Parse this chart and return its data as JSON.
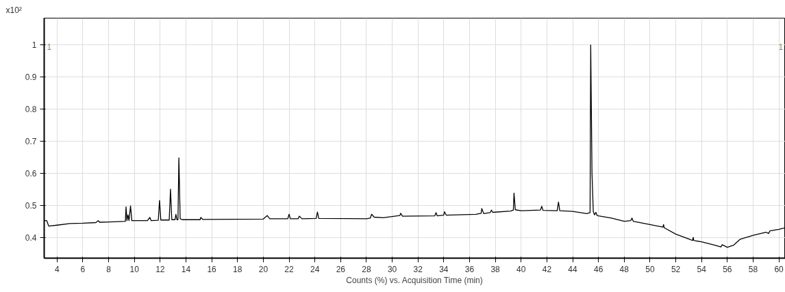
{
  "chart_data": {
    "type": "line",
    "xlabel": "Counts (%) vs. Acquisition Time (min)",
    "ylabel": "x10²",
    "annotations": [
      "1",
      "1"
    ],
    "xlim": [
      3.0,
      60.5
    ],
    "ylim": [
      0.335,
      1.084
    ],
    "xticks": [
      4,
      6,
      8,
      10,
      12,
      14,
      16,
      18,
      20,
      22,
      24,
      26,
      28,
      30,
      32,
      34,
      36,
      38,
      40,
      42,
      44,
      46,
      48,
      50,
      52,
      54,
      56,
      58,
      60
    ],
    "yticks": [
      0.4,
      0.5,
      0.6,
      0.7,
      0.8,
      0.9,
      1
    ],
    "grid": true,
    "marker": "none",
    "line_style": "solid",
    "x": [
      3.0,
      3.2,
      3.35,
      4,
      5,
      6,
      7,
      7.2,
      7.3,
      8,
      9.3,
      9.35,
      9.42,
      9.5,
      9.58,
      9.7,
      9.8,
      11,
      11.2,
      11.3,
      11.85,
      11.95,
      12.05,
      12.7,
      12.8,
      12.9,
      13.15,
      13.22,
      13.3,
      13.38,
      13.45,
      13.55,
      13.7,
      15.1,
      15.15,
      15.3,
      20,
      20.3,
      20.5,
      21.9,
      22.0,
      22.1,
      22.7,
      22.8,
      23,
      24.1,
      24.2,
      24.3,
      28,
      28.3,
      28.4,
      28.6,
      29.3,
      30,
      30.6,
      30.65,
      30.8,
      33.3,
      33.4,
      33.5,
      34,
      34.05,
      34.2,
      36.5,
      36.9,
      36.95,
      37.1,
      37.6,
      37.7,
      37.8,
      39.2,
      39.4,
      39.45,
      39.55,
      40,
      41.5,
      41.6,
      41.7,
      42.8,
      42.9,
      43,
      44.0,
      45.1,
      45.35,
      45.4,
      45.5,
      45.6,
      45.7,
      45.8,
      45.9,
      46,
      47,
      48,
      48.5,
      48.6,
      48.7,
      50,
      51,
      51.05,
      51.1,
      52,
      53,
      53.3,
      53.35,
      53.4,
      54,
      55,
      55.5,
      55.6,
      56,
      56.5,
      57,
      58,
      59,
      59.2,
      59.3,
      60,
      60.5
    ],
    "series": [
      {
        "color": "#000000",
        "values": [
          0.452,
          0.452,
          0.435,
          0.438,
          0.443,
          0.444,
          0.446,
          0.452,
          0.447,
          0.448,
          0.45,
          0.495,
          0.452,
          0.47,
          0.452,
          0.498,
          0.452,
          0.452,
          0.462,
          0.452,
          0.453,
          0.515,
          0.454,
          0.454,
          0.55,
          0.455,
          0.455,
          0.472,
          0.455,
          0.455,
          0.648,
          0.458,
          0.455,
          0.455,
          0.462,
          0.456,
          0.457,
          0.468,
          0.458,
          0.458,
          0.472,
          0.458,
          0.458,
          0.466,
          0.458,
          0.459,
          0.479,
          0.459,
          0.458,
          0.46,
          0.472,
          0.463,
          0.461,
          0.465,
          0.468,
          0.475,
          0.466,
          0.467,
          0.477,
          0.467,
          0.469,
          0.48,
          0.469,
          0.472,
          0.475,
          0.49,
          0.474,
          0.477,
          0.485,
          0.478,
          0.482,
          0.485,
          0.538,
          0.486,
          0.483,
          0.485,
          0.497,
          0.484,
          0.483,
          0.51,
          0.483,
          0.481,
          0.474,
          0.477,
          1.0,
          0.6,
          0.48,
          0.47,
          0.478,
          0.468,
          0.467,
          0.46,
          0.45,
          0.452,
          0.46,
          0.45,
          0.44,
          0.432,
          0.44,
          0.43,
          0.41,
          0.395,
          0.39,
          0.4,
          0.39,
          0.386,
          0.376,
          0.37,
          0.377,
          0.369,
          0.376,
          0.394,
          0.406,
          0.416,
          0.412,
          0.42,
          0.425,
          0.43
        ]
      }
    ]
  }
}
